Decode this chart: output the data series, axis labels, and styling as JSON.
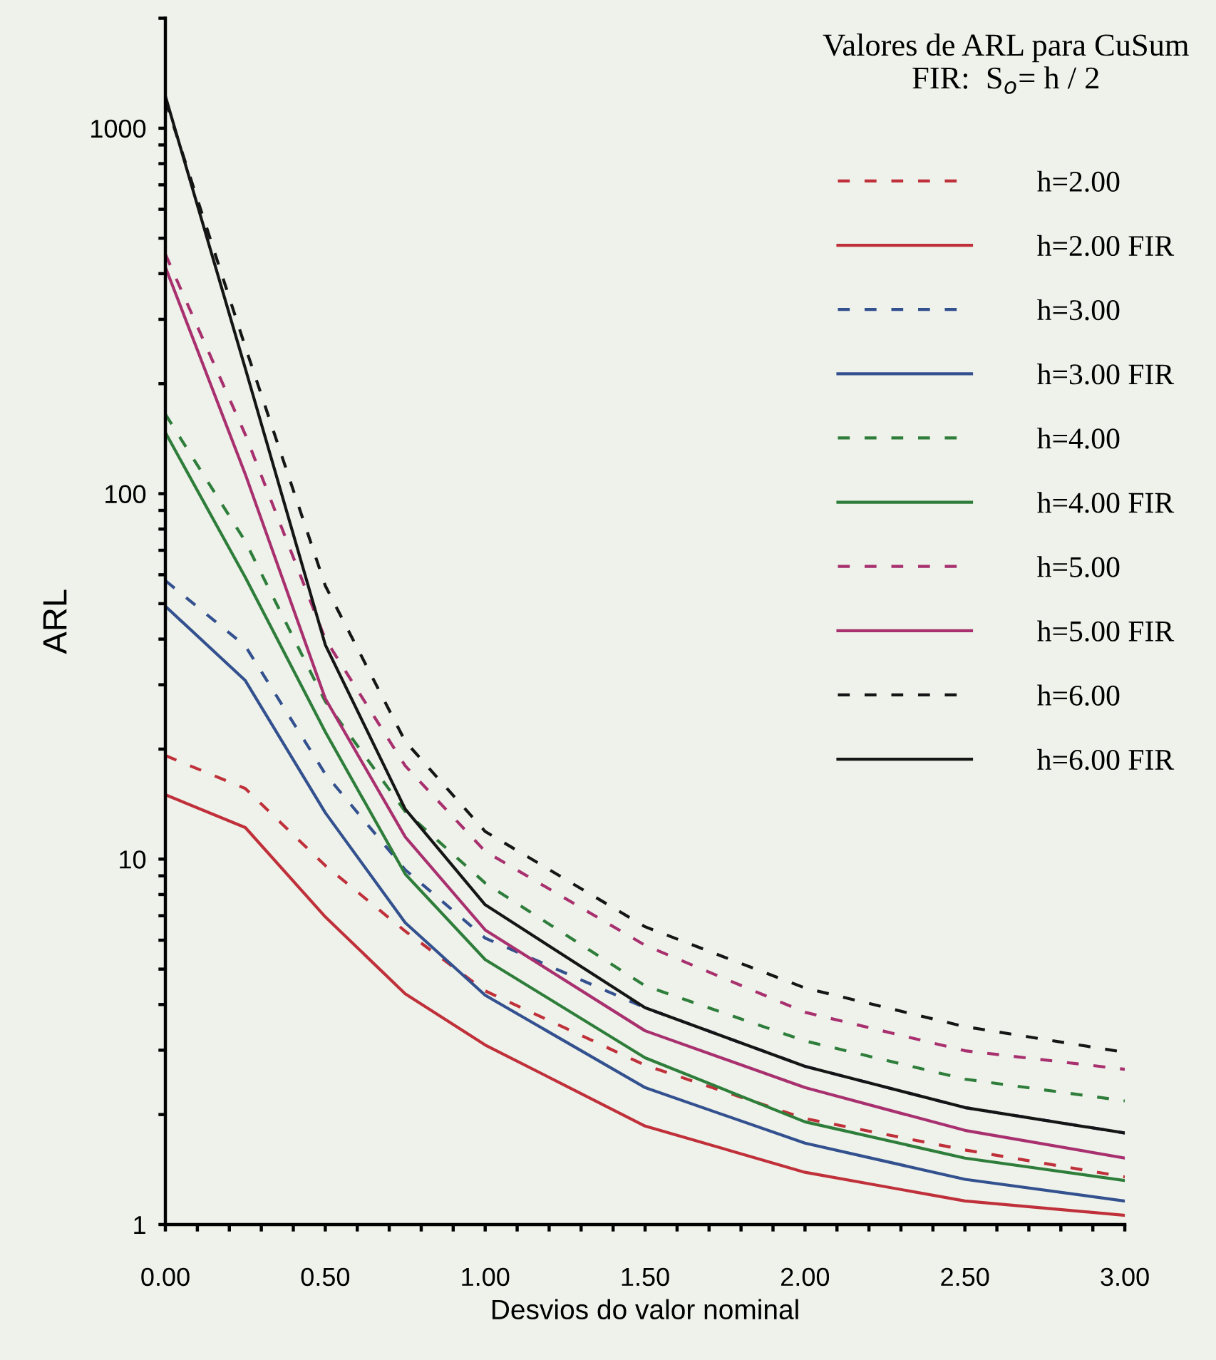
{
  "chart_data": {
    "type": "line",
    "xlabel": "Desvios do valor nominal",
    "ylabel": "ARL",
    "legend_title": "Valores de ARL para CuSum\nFIR:  S$_{o}$= h / 2",
    "legend": "top right",
    "log": "y",
    "x": [
      0,
      0.25,
      0.5,
      0.75,
      1,
      1.5,
      2,
      2.5,
      3
    ],
    "xlim": [
      0,
      3
    ],
    "xticks": [
      {
        "value": 0,
        "label": "0.00"
      },
      {
        "value": 0.1,
        "label": null
      },
      {
        "value": 0.2,
        "label": null
      },
      {
        "value": 0.3,
        "label": null
      },
      {
        "value": 0.4,
        "label": null
      },
      {
        "value": 0.5,
        "label": "0.50"
      },
      {
        "value": 0.6,
        "label": null
      },
      {
        "value": 0.7,
        "label": null
      },
      {
        "value": 0.8,
        "label": null
      },
      {
        "value": 0.9,
        "label": null
      },
      {
        "value": 1,
        "label": "1.00"
      },
      {
        "value": 1.1,
        "label": null
      },
      {
        "value": 1.2,
        "label": null
      },
      {
        "value": 1.3,
        "label": null
      },
      {
        "value": 1.4,
        "label": null
      },
      {
        "value": 1.5,
        "label": "1.50"
      },
      {
        "value": 1.6,
        "label": null
      },
      {
        "value": 1.7,
        "label": null
      },
      {
        "value": 1.8,
        "label": null
      },
      {
        "value": 1.9,
        "label": null
      },
      {
        "value": 2,
        "label": "2.00"
      },
      {
        "value": 2.1,
        "label": null
      },
      {
        "value": 2.2,
        "label": null
      },
      {
        "value": 2.3,
        "label": null
      },
      {
        "value": 2.4,
        "label": null
      },
      {
        "value": 2.5,
        "label": "2.50"
      },
      {
        "value": 2.6,
        "label": null
      },
      {
        "value": 2.7,
        "label": null
      },
      {
        "value": 2.8,
        "label": null
      },
      {
        "value": 2.9,
        "label": null
      },
      {
        "value": 3,
        "label": "3.00"
      }
    ],
    "ylim": [
      1,
      2000
    ],
    "yticks": [
      1,
      {
        "value": 2,
        "label": null
      },
      {
        "value": 3,
        "label": null
      },
      {
        "value": 4,
        "label": null
      },
      {
        "value": 5,
        "label": null
      },
      {
        "value": 6,
        "label": null
      },
      {
        "value": 7,
        "label": null
      },
      {
        "value": 8,
        "label": null
      },
      {
        "value": 9,
        "label": null
      },
      10,
      {
        "value": 20,
        "label": null
      },
      {
        "value": 30,
        "label": null
      },
      {
        "value": 40,
        "label": null
      },
      {
        "value": 50,
        "label": null
      },
      {
        "value": 60,
        "label": null
      },
      {
        "value": 70,
        "label": null
      },
      {
        "value": 80,
        "label": null
      },
      {
        "value": 90,
        "label": null
      },
      100,
      {
        "value": 200,
        "label": null
      },
      {
        "value": 300,
        "label": null
      },
      {
        "value": 400,
        "label": null
      },
      {
        "value": 500,
        "label": null
      },
      {
        "value": 600,
        "label": null
      },
      {
        "value": 700,
        "label": null
      },
      {
        "value": 800,
        "label": null
      },
      {
        "value": 900,
        "label": null
      },
      1000,
      {
        "value": 2000,
        "label": null
      }
    ],
    "series": [
      {
        "name": "h=2.00",
        "color": "#c0303a",
        "line_style": "dashed",
        "values": [
          19.2,
          15.6,
          9.6,
          6.35,
          4.36,
          2.73,
          1.95,
          1.6,
          1.35
        ]
      },
      {
        "name": "h=2.00 FIR",
        "color": "#c0303a",
        "line_style": "solid",
        "values": [
          15.0,
          12.2,
          6.95,
          4.28,
          3.1,
          1.86,
          1.39,
          1.16,
          1.06
        ]
      },
      {
        "name": "h=3.00",
        "color": "#33508f",
        "line_style": "dashed",
        "values": [
          57.8,
          38.3,
          17.1,
          9.35,
          6.08,
          3.92,
          2.71,
          2.09,
          1.78
        ]
      },
      {
        "name": "h=3.00 FIR",
        "color": "#33508f",
        "line_style": "solid",
        "values": [
          49.2,
          30.8,
          13.4,
          6.7,
          4.24,
          2.37,
          1.67,
          1.33,
          1.16
        ]
      },
      {
        "name": "h=4.00",
        "color": "#2e7d3a",
        "line_style": "dashed",
        "values": [
          165,
          74,
          27,
          13.5,
          8.6,
          4.5,
          3.18,
          2.5,
          2.18
        ]
      },
      {
        "name": "h=4.00 FIR",
        "color": "#2e7d3a",
        "line_style": "solid",
        "values": [
          147,
          59,
          22.3,
          9.1,
          5.31,
          2.86,
          1.91,
          1.52,
          1.32
        ]
      },
      {
        "name": "h=5.00",
        "color": "#a8306f",
        "line_style": "dashed",
        "values": [
          452,
          145,
          40,
          18,
          10.5,
          5.81,
          3.81,
          2.99,
          2.66
        ]
      },
      {
        "name": "h=5.00 FIR",
        "color": "#a8306f",
        "line_style": "solid",
        "values": [
          417,
          113,
          27.5,
          11.5,
          6.4,
          3.39,
          2.37,
          1.81,
          1.52
        ]
      },
      {
        "name": "h=6.00",
        "color": "#151515",
        "line_style": "dashed",
        "values": [
          1190,
          252,
          56,
          21,
          11.9,
          6.53,
          4.44,
          3.48,
          2.96
        ]
      },
      {
        "name": "h=6.00 FIR",
        "color": "#151515",
        "line_style": "solid",
        "values": [
          1224,
          220,
          38.6,
          13.7,
          7.5,
          3.92,
          2.71,
          2.09,
          1.78
        ]
      }
    ]
  }
}
